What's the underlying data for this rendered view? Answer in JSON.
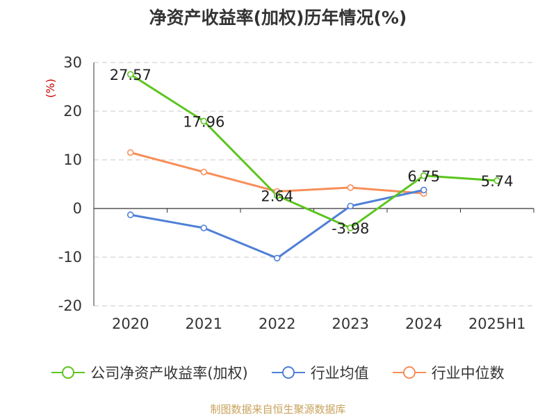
{
  "chart_data": {
    "type": "line",
    "title": "净资产收益率(加权)历年情况(%)",
    "ylabel": "(%)",
    "categories": [
      "2020",
      "2021",
      "2022",
      "2023",
      "2024",
      "2025H1"
    ],
    "ylim": [
      -20,
      30
    ],
    "yticks": [
      30,
      20,
      10,
      0,
      -10,
      -20
    ],
    "grid": true,
    "legend_position": "bottom",
    "series": [
      {
        "name": "公司净资产收益率(加权)",
        "color": "#5cc51f",
        "values": [
          27.57,
          17.96,
          2.64,
          -3.98,
          6.75,
          5.74
        ],
        "labels": [
          "27.57",
          "17.96",
          "2.64",
          "-3.98",
          "6.75",
          "5.74"
        ]
      },
      {
        "name": "行业均值",
        "color": "#4f7fd6",
        "values": [
          -1.3,
          -4.0,
          -10.2,
          0.5,
          3.8,
          null
        ]
      },
      {
        "name": "行业中位数",
        "color": "#f88e59",
        "values": [
          11.5,
          7.5,
          3.5,
          4.3,
          3.1,
          null
        ]
      }
    ]
  },
  "source": "制图数据来自恒生聚源数据库"
}
